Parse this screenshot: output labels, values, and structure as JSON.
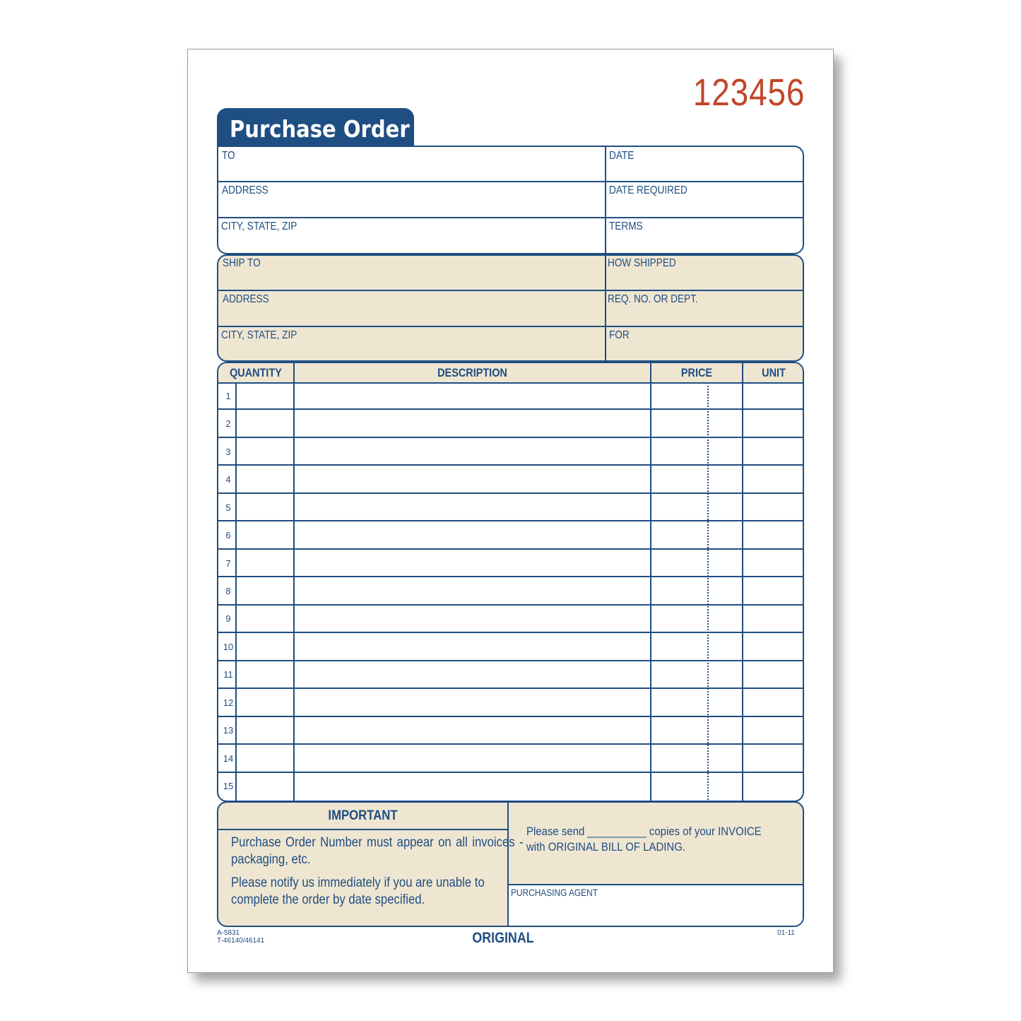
{
  "form_number": "123456",
  "title": "Purchase Order",
  "vendor_fields": {
    "to": "TO",
    "address": "ADDRESS",
    "city": "CITY, STATE, ZIP",
    "date": "DATE",
    "date_required": "DATE REQUIRED",
    "terms": "TERMS"
  },
  "ship_fields": {
    "ship_to": "SHIP TO",
    "address": "ADDRESS",
    "city": "CITY, STATE, ZIP",
    "how_shipped": "HOW SHIPPED",
    "req_no": "REQ. NO. OR DEPT.",
    "for": "FOR"
  },
  "table": {
    "columns": [
      "QUANTITY",
      "DESCRIPTION",
      "PRICE",
      "UNIT"
    ],
    "rows": [
      "1",
      "2",
      "3",
      "4",
      "5",
      "6",
      "7",
      "8",
      "9",
      "10",
      "11",
      "12",
      "13",
      "14",
      "15"
    ]
  },
  "important": {
    "heading": "IMPORTANT",
    "line1": "Purchase Order Number must appear on all invoices - packaging, etc.",
    "line2": "Please notify us immediately if you are unable to complete the order by date specified."
  },
  "invoice_note": {
    "line1": "Please send __________ copies of your INVOICE",
    "line2": "with ORIGINAL BILL OF LADING."
  },
  "purchasing_agent": "PURCHASING AGENT",
  "footer": {
    "code1": "A-5831",
    "code2": "T-46140/46141",
    "copy": "ORIGINAL",
    "revision": "01-11"
  },
  "colors": {
    "navy": "#1f4e82",
    "tan": "#efe6d2",
    "number_red": "#c0462a"
  }
}
